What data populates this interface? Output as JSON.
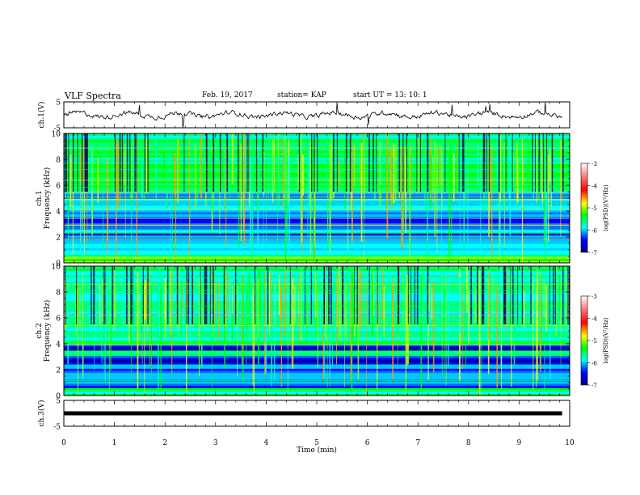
{
  "header": {
    "title": "VLF Spectra",
    "date": "Feb. 19, 2017",
    "station": "station= KAP",
    "start": "start  UT =   13: 10: 1"
  },
  "colorbar": {
    "label": "log(PSD)(V²/Hz)",
    "ticks": [
      "-3",
      "-4",
      "-5",
      "-6",
      "-7"
    ],
    "colors": [
      "#ff0000",
      "#ffff00",
      "#00ff00",
      "#00ffff",
      "#0000ff",
      "#000080"
    ]
  },
  "chart_data": [
    {
      "type": "line",
      "name": "ch.1(V)",
      "ylabel": "ch.1(V)",
      "ylim": [
        -5,
        5
      ],
      "yticks": [
        "5",
        "-5"
      ],
      "xlim": [
        0,
        10
      ],
      "y_typical": [
        -1.5,
        1.5
      ]
    },
    {
      "type": "heatmap",
      "ylabel": "ch.1\nFrequency (kHz)",
      "ylabel_lines": [
        "ch.1",
        "Frequency (kHz)"
      ],
      "ylim": [
        0,
        10
      ],
      "yticks": [
        "0",
        "2",
        "4",
        "6",
        "8",
        "10"
      ],
      "xlim": [
        0,
        10
      ],
      "zlim": [
        -7,
        -3
      ],
      "bands_khz": [
        {
          "f": [
            0,
            0.5
          ],
          "level": -4.3
        },
        {
          "f": [
            0.5,
            1.5
          ],
          "level": -5.6
        },
        {
          "f": [
            1.5,
            2.3
          ],
          "level": -6.1
        },
        {
          "f": [
            2.3,
            2.6
          ],
          "level": -5.0
        },
        {
          "f": [
            2.6,
            3.6
          ],
          "level": -6.4
        },
        {
          "f": [
            3.6,
            5.5
          ],
          "level": -5.8
        },
        {
          "f": [
            5.5,
            10
          ],
          "level": -4.9
        }
      ]
    },
    {
      "type": "heatmap",
      "ylabel": "ch.2\nFrequency (kHz)",
      "ylabel_lines": [
        "ch.2",
        "Frequency (kHz)"
      ],
      "ylim": [
        0,
        10
      ],
      "yticks": [
        "0",
        "2",
        "4",
        "6",
        "8",
        "10"
      ],
      "xlim": [
        0,
        10
      ],
      "zlim": [
        -7,
        -3
      ],
      "bands_khz": [
        {
          "f": [
            0,
            0.6
          ],
          "level": -5.0
        },
        {
          "f": [
            0.6,
            2.6
          ],
          "level": -6.2
        },
        {
          "f": [
            2.6,
            3.1
          ],
          "level": -6.5
        },
        {
          "f": [
            3.1,
            3.5
          ],
          "level": -5.0
        },
        {
          "f": [
            3.5,
            4.0
          ],
          "level": -6.8
        },
        {
          "f": [
            4.0,
            10
          ],
          "level": -5.2
        }
      ]
    },
    {
      "type": "line",
      "name": "ch.3(V)",
      "ylabel": "ch.3(V)",
      "ylim": [
        -5,
        5
      ],
      "yticks": [
        "5",
        "-5"
      ],
      "xlim": [
        0,
        10
      ],
      "constant_value": 0
    }
  ],
  "xaxis": {
    "label": "Time  (min)",
    "ticks": [
      "0",
      "1",
      "2",
      "3",
      "4",
      "5",
      "6",
      "7",
      "8",
      "9",
      "10"
    ]
  }
}
